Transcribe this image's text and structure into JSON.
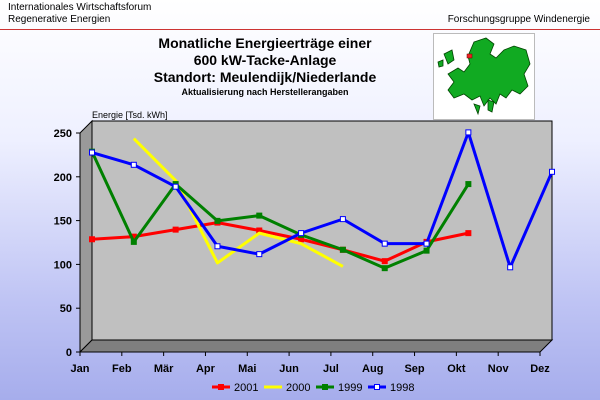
{
  "header": {
    "left_line1": "Internationales Wirtschaftsforum",
    "left_line2": "Regenerative Energien",
    "right": "Forschungsgruppe Windenergie"
  },
  "chart_data": {
    "type": "line",
    "title": "Monatliche Energieerträge einer",
    "title_line2": "600 kW-Tacke-Anlage",
    "title_line3": "Standort: Meulendijk/Niederlande",
    "subtitle": "Aktualisierung nach Herstellerangaben",
    "ylabel": "Energie [Tsd. kWh]",
    "xlabel": "",
    "ylim": [
      0,
      250
    ],
    "yticks": [
      0,
      50,
      100,
      150,
      200,
      250
    ],
    "grid": false,
    "legend_position": "bottom",
    "categories": [
      "Jan",
      "Feb",
      "Mär",
      "Apr",
      "Mai",
      "Jun",
      "Jul",
      "Aug",
      "Sep",
      "Okt",
      "Nov",
      "Dez"
    ],
    "series": [
      {
        "name": "2001",
        "color": "#ff0000",
        "marker": "square",
        "values": [
          115,
          118,
          126,
          134,
          125,
          115,
          103,
          90,
          112,
          122,
          null,
          null
        ]
      },
      {
        "name": "2000",
        "color": "#ffff00",
        "marker": "none",
        "values": [
          null,
          230,
          182,
          88,
          122,
          110,
          84,
          null,
          null,
          null,
          null,
          null
        ]
      },
      {
        "name": "1999",
        "color": "#008000",
        "marker": "square",
        "values": [
          215,
          112,
          178,
          136,
          142,
          120,
          103,
          82,
          102,
          178,
          null,
          null
        ]
      },
      {
        "name": "1998",
        "color": "#0000ff",
        "marker": "square-open",
        "values": [
          214,
          200,
          175,
          107,
          98,
          122,
          138,
          110,
          110,
          237,
          83,
          192
        ]
      }
    ]
  }
}
